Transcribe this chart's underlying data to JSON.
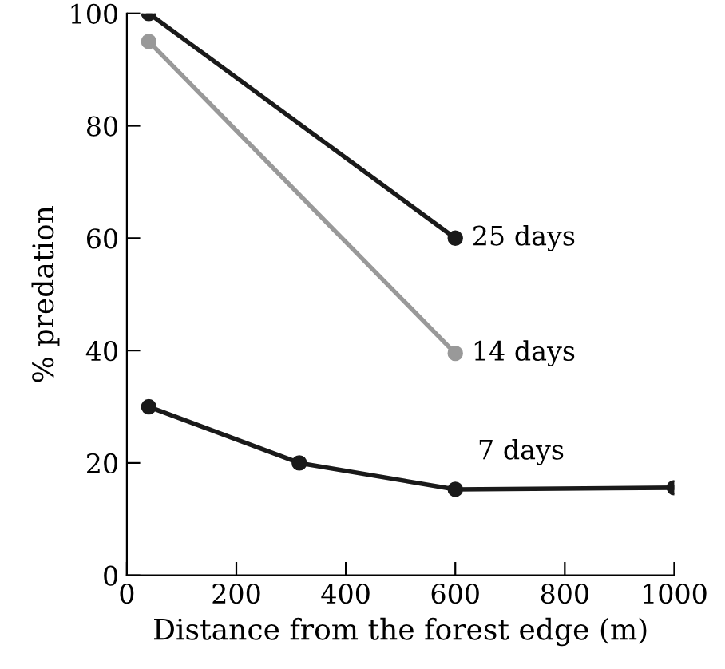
{
  "chart_data": {
    "type": "line",
    "xlabel": "Distance from the forest edge (m)",
    "ylabel": "% predation",
    "series": [
      {
        "name": "25 days",
        "color": "#1a1a1a",
        "x": [
          40,
          600
        ],
        "values": [
          100,
          60
        ]
      },
      {
        "name": "14 days",
        "color": "#999999",
        "x": [
          40,
          600
        ],
        "values": [
          95,
          39.5
        ]
      },
      {
        "name": "7 days",
        "color": "#1a1a1a",
        "x": [
          40,
          315,
          600,
          1000
        ],
        "values": [
          30,
          20,
          15.3,
          15.6
        ]
      }
    ],
    "xlim": [
      0,
      1000
    ],
    "xticks": [
      0,
      200,
      400,
      600,
      800,
      1000
    ],
    "ylim": [
      0,
      100
    ],
    "yticks": [
      0,
      20,
      40,
      60,
      80,
      100
    ],
    "marker": "circle",
    "line_style": "solid",
    "grid": false,
    "legend": false
  }
}
